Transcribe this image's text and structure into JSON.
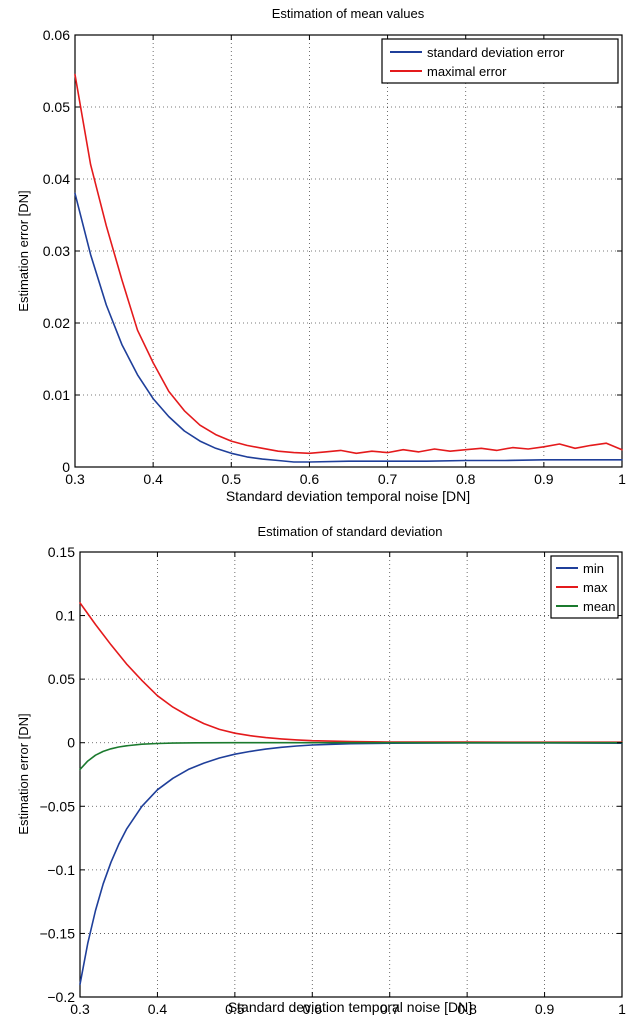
{
  "chart_data": [
    {
      "type": "line",
      "title": "Estimation of mean values",
      "xlabel": "Standard deviation temporal noise [DN]",
      "ylabel": "Estimation error [DN]",
      "xlim": [
        0.3,
        1
      ],
      "ylim": [
        0,
        0.06
      ],
      "xticks": [
        "0.3",
        "0.4",
        "0.5",
        "0.6",
        "0.7",
        "0.8",
        "0.9",
        "1"
      ],
      "yticks": [
        "0",
        "0.01",
        "0.02",
        "0.03",
        "0.04",
        "0.05",
        "0.06"
      ],
      "grid": true,
      "legend_position": "top-right",
      "series": [
        {
          "name": "standard deviation error",
          "color": "#1f3f9a",
          "x": [
            0.3,
            0.32,
            0.34,
            0.36,
            0.38,
            0.4,
            0.42,
            0.44,
            0.46,
            0.48,
            0.5,
            0.52,
            0.54,
            0.56,
            0.58,
            0.6,
            0.65,
            0.7,
            0.75,
            0.8,
            0.85,
            0.9,
            0.95,
            1.0
          ],
          "values": [
            0.038,
            0.0295,
            0.0225,
            0.017,
            0.0128,
            0.0095,
            0.007,
            0.005,
            0.0036,
            0.0026,
            0.0019,
            0.0014,
            0.0011,
            0.0009,
            0.0007,
            0.0007,
            0.0008,
            0.0008,
            0.0008,
            0.0009,
            0.0009,
            0.001,
            0.001,
            0.001
          ]
        },
        {
          "name": "maximal error",
          "color": "#e41a1c",
          "x": [
            0.3,
            0.32,
            0.34,
            0.36,
            0.38,
            0.4,
            0.42,
            0.44,
            0.46,
            0.48,
            0.5,
            0.52,
            0.54,
            0.56,
            0.58,
            0.6,
            0.62,
            0.64,
            0.66,
            0.68,
            0.7,
            0.72,
            0.74,
            0.76,
            0.78,
            0.8,
            0.82,
            0.84,
            0.86,
            0.88,
            0.9,
            0.92,
            0.94,
            0.96,
            0.98,
            1.0
          ],
          "values": [
            0.0545,
            0.042,
            0.0335,
            0.026,
            0.019,
            0.0145,
            0.0105,
            0.0078,
            0.0058,
            0.0045,
            0.0036,
            0.003,
            0.0026,
            0.0022,
            0.002,
            0.0019,
            0.0021,
            0.0023,
            0.0019,
            0.0022,
            0.002,
            0.0024,
            0.0021,
            0.0025,
            0.0022,
            0.0024,
            0.0026,
            0.0023,
            0.0027,
            0.0025,
            0.0028,
            0.0032,
            0.0026,
            0.003,
            0.0033,
            0.0024
          ]
        }
      ]
    },
    {
      "type": "line",
      "title": "Estimation of standard deviation",
      "xlabel": "Standard deviation temporal noise [DN]",
      "ylabel": "Estimation error [DN]",
      "xlim": [
        0.3,
        1
      ],
      "ylim": [
        -0.2,
        0.15
      ],
      "xticks": [
        "0.3",
        "0.4",
        "0.5",
        "0.6",
        "0.7",
        "0.8",
        "0.9",
        "1"
      ],
      "yticks": [
        "-0.2",
        "-0.15",
        "-0.1",
        "-0.05",
        "0",
        "0.05",
        "0.1",
        "0.15"
      ],
      "ytick_labels": [
        "−0.2",
        "−0.15",
        "−0.1",
        "−0.05",
        "0",
        "0.05",
        "0.1",
        "0.15"
      ],
      "grid": true,
      "legend_position": "top-right",
      "series": [
        {
          "name": "min",
          "color": "#1f3f9a",
          "x": [
            0.3,
            0.31,
            0.32,
            0.33,
            0.34,
            0.35,
            0.36,
            0.38,
            0.4,
            0.42,
            0.44,
            0.46,
            0.48,
            0.5,
            0.52,
            0.54,
            0.56,
            0.58,
            0.6,
            0.62,
            0.65,
            0.7,
            0.8,
            0.9,
            1.0
          ],
          "values": [
            -0.19,
            -0.158,
            -0.132,
            -0.111,
            -0.094,
            -0.08,
            -0.068,
            -0.05,
            -0.037,
            -0.028,
            -0.021,
            -0.016,
            -0.012,
            -0.009,
            -0.0068,
            -0.005,
            -0.0036,
            -0.0026,
            -0.0018,
            -0.0013,
            -0.0008,
            -0.0004,
            -0.0002,
            -0.0002,
            -0.0004
          ]
        },
        {
          "name": "max",
          "color": "#e41a1c",
          "x": [
            0.3,
            0.32,
            0.34,
            0.36,
            0.38,
            0.4,
            0.42,
            0.44,
            0.46,
            0.48,
            0.5,
            0.52,
            0.54,
            0.56,
            0.58,
            0.6,
            0.65,
            0.7,
            0.8,
            0.9,
            1.0
          ],
          "values": [
            0.11,
            0.093,
            0.077,
            0.062,
            0.049,
            0.037,
            0.028,
            0.021,
            0.015,
            0.0105,
            0.0075,
            0.0055,
            0.004,
            0.003,
            0.0022,
            0.0016,
            0.0009,
            0.0006,
            0.0005,
            0.0004,
            0.0004
          ]
        },
        {
          "name": "mean",
          "color": "#1b7a2e",
          "x": [
            0.3,
            0.31,
            0.32,
            0.33,
            0.34,
            0.35,
            0.36,
            0.38,
            0.4,
            0.42,
            0.45,
            0.5,
            0.6,
            0.7,
            0.8,
            0.9,
            1.0
          ],
          "values": [
            -0.021,
            -0.0145,
            -0.0098,
            -0.0068,
            -0.0048,
            -0.0034,
            -0.0024,
            -0.0012,
            -0.0006,
            -0.0003,
            -0.0001,
            0.0,
            0.0,
            0.0,
            0.0,
            0.0,
            0.0
          ]
        }
      ]
    }
  ]
}
